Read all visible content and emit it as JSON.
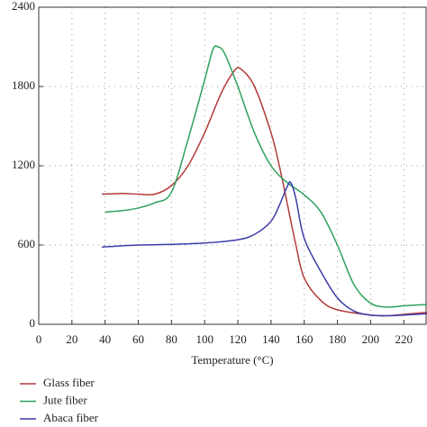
{
  "chart_data": {
    "type": "line",
    "xlabel": "Temperature (°C)",
    "xlim": [
      0,
      234
    ],
    "ylim": [
      0,
      2400
    ],
    "xticks": [
      0,
      20,
      40,
      60,
      80,
      100,
      120,
      140,
      160,
      180,
      200,
      220
    ],
    "yticks": [
      0,
      600,
      1200,
      1800,
      2400
    ],
    "grid": true,
    "series": [
      {
        "name": "Glass fiber",
        "color": "#b23a3a",
        "x": [
          38,
          50,
          60,
          70,
          80,
          90,
          100,
          110,
          118,
          122,
          130,
          140,
          145,
          150,
          155,
          160,
          170,
          180,
          200,
          210,
          220,
          234
        ],
        "values": [
          985,
          990,
          985,
          985,
          1050,
          1200,
          1450,
          1750,
          1920,
          1930,
          1800,
          1450,
          1200,
          900,
          600,
          350,
          180,
          110,
          70,
          65,
          75,
          90
        ]
      },
      {
        "name": "Jute fiber",
        "color": "#2ea05c",
        "x": [
          40,
          50,
          60,
          70,
          80,
          90,
          100,
          105,
          108,
          112,
          120,
          130,
          140,
          150,
          160,
          170,
          180,
          190,
          200,
          210,
          220,
          234
        ],
        "values": [
          850,
          860,
          880,
          920,
          1000,
          1400,
          1850,
          2080,
          2100,
          2050,
          1800,
          1450,
          1200,
          1070,
          980,
          850,
          600,
          300,
          160,
          130,
          140,
          150
        ]
      },
      {
        "name": "Abaca fiber",
        "color": "#3c3ca8",
        "x": [
          38,
          60,
          80,
          100,
          120,
          130,
          140,
          145,
          150,
          152,
          155,
          160,
          170,
          180,
          190,
          200,
          210,
          220,
          234
        ],
        "values": [
          585,
          600,
          605,
          615,
          640,
          680,
          780,
          900,
          1050,
          1070,
          950,
          650,
          400,
          200,
          100,
          70,
          65,
          70,
          80
        ]
      }
    ]
  }
}
